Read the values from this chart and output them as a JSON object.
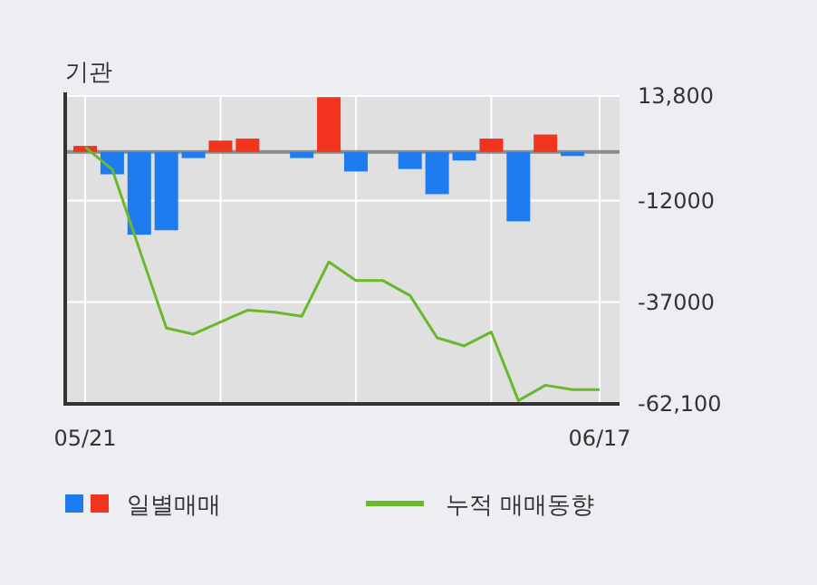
{
  "chart_data": {
    "type": "bar",
    "title": "기관",
    "categories": [
      "05/21",
      null,
      null,
      null,
      null,
      null,
      null,
      null,
      null,
      null,
      null,
      null,
      null,
      null,
      null,
      null,
      null,
      null,
      null,
      "06/17"
    ],
    "series": [
      {
        "name": "일별매매",
        "colors": [
          "#f0341e",
          "#1e7cf0",
          "#1e7cf0",
          "#1e7cf0",
          "#1e7cf0",
          "#f0341e",
          "#f0341e",
          null,
          "#1e7cf0",
          "#f0341e",
          "#1e7cf0",
          null,
          "#1e7cf0",
          "#1e7cf0",
          "#1e7cf0",
          "#f0341e",
          "#1e7cf0",
          "#f0341e",
          "#1e7cf0",
          null
        ],
        "values": [
          1500,
          -5500,
          -20400,
          -19300,
          -1500,
          2800,
          3300,
          null,
          -1500,
          13500,
          -4800,
          null,
          -4200,
          -10400,
          -2100,
          3300,
          -17100,
          4300,
          -1000,
          null
        ]
      },
      {
        "name": "누적 매매동향",
        "type": "line",
        "color": "#6ab92c",
        "values": [
          1200,
          -4300,
          -23900,
          -43400,
          -44900,
          -41900,
          -39000,
          -39500,
          -40500,
          -27100,
          -31700,
          -31700,
          -35400,
          -45800,
          -47800,
          -44400,
          -61300,
          -57500,
          -58600,
          -58600
        ]
      }
    ],
    "ylim": [
      -62100,
      13800
    ],
    "yticks": [
      {
        "value": 13800,
        "label": "13,800"
      },
      -12000,
      -37000,
      {
        "value": -62100,
        "label": "-62,100"
      }
    ],
    "ref_lines": [
      {
        "axis": "y",
        "value": 0,
        "color": "#8c8c8c"
      }
    ],
    "grid": true,
    "legend": "bottom"
  }
}
